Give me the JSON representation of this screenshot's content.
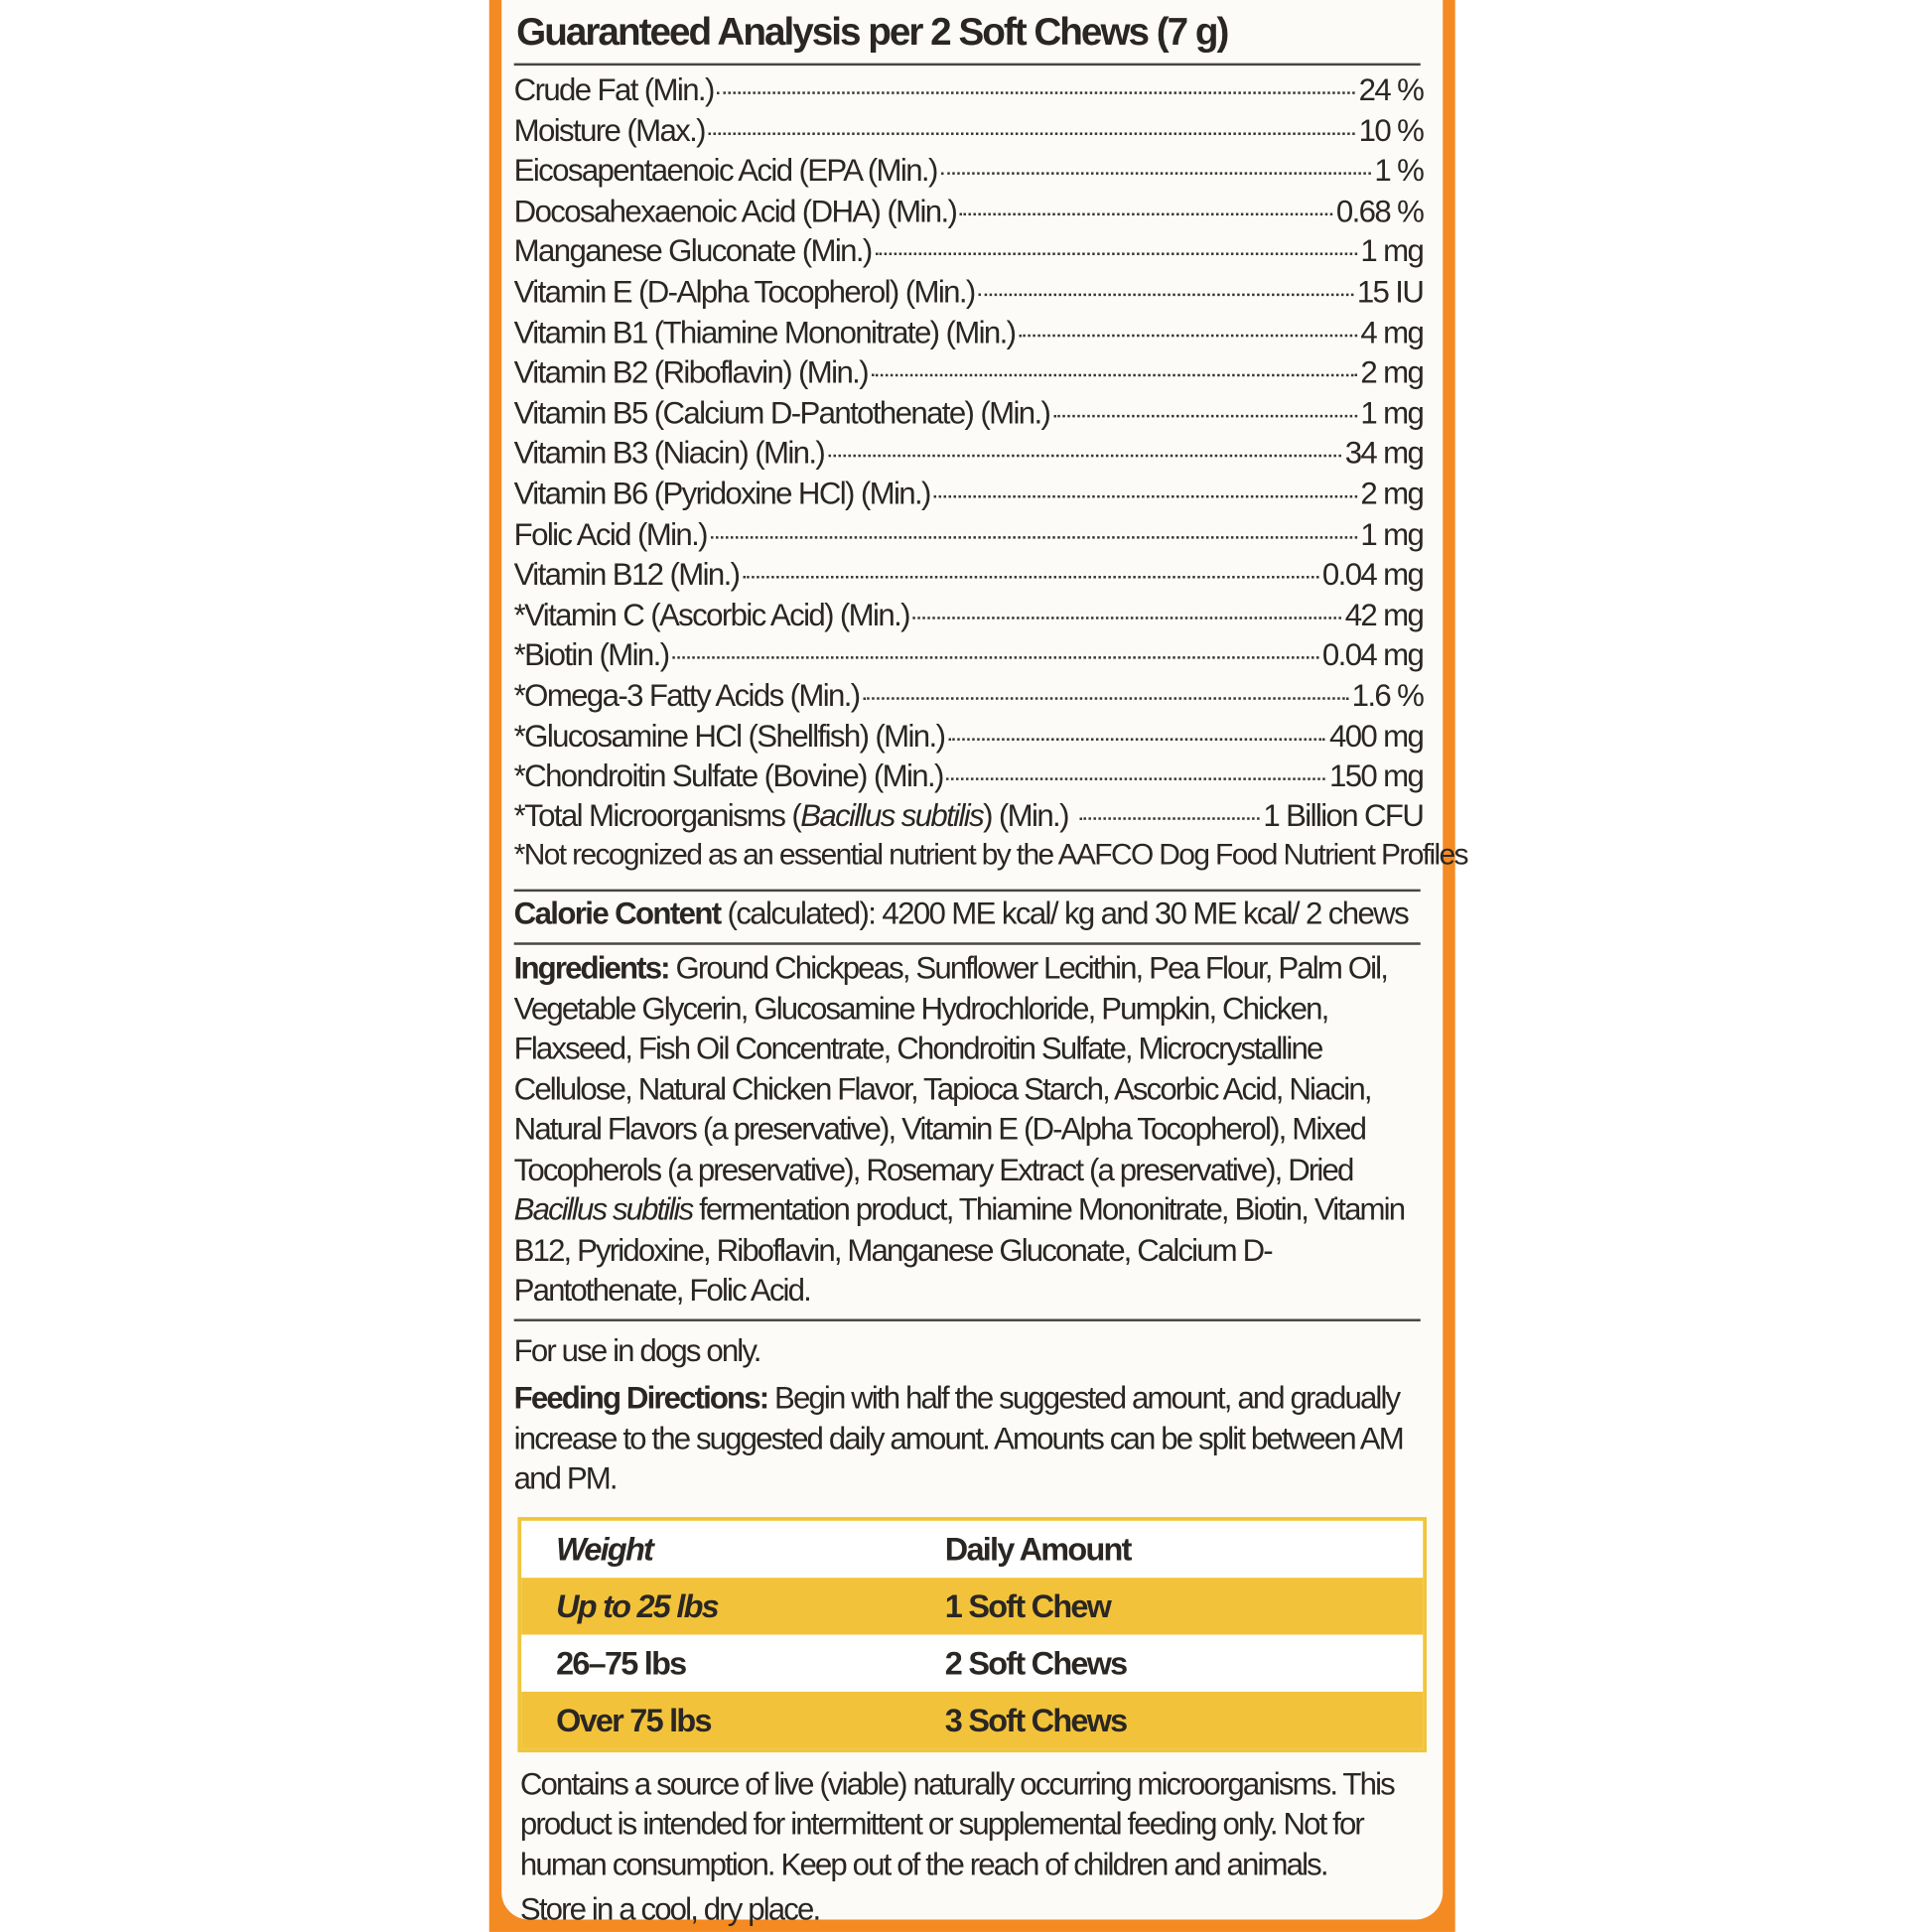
{
  "colors": {
    "border": "#f48a22",
    "table_highlight": "#f2c33a",
    "text": "#2a2623"
  },
  "analysis": {
    "title": "Guaranteed Analysis per 2 Soft Chews (7 g)",
    "rows": [
      {
        "name": "Crude Fat (Min.)",
        "value": "24 %"
      },
      {
        "name": "Moisture (Max.)",
        "value": "10 %"
      },
      {
        "name": "Eicosapentaenoic Acid (EPA (Min.)",
        "value": "1 %"
      },
      {
        "name": "Docosahexaenoic Acid (DHA) (Min.)",
        "value": "0.68 %"
      },
      {
        "name": "Manganese Gluconate (Min.)",
        "value": "1 mg"
      },
      {
        "name": "Vitamin E (D-Alpha Tocopherol) (Min.)",
        "value": "15 IU"
      },
      {
        "name": "Vitamin B1 (Thiamine Mononitrate) (Min.)",
        "value": "4 mg"
      },
      {
        "name": "Vitamin B2 (Riboflavin) (Min.)",
        "value": "2 mg"
      },
      {
        "name": "Vitamin B5 (Calcium D-Pantothenate) (Min.)",
        "value": "1 mg"
      },
      {
        "name": "Vitamin B3 (Niacin) (Min.)",
        "value": "34 mg"
      },
      {
        "name": "Vitamin B6 (Pyridoxine HCl) (Min.)",
        "value": "2 mg"
      },
      {
        "name": "Folic Acid (Min.)",
        "value": "1 mg"
      },
      {
        "name": "Vitamin B12 (Min.)",
        "value": "0.04 mg"
      },
      {
        "name": "*Vitamin C (Ascorbic Acid) (Min.)",
        "value": "42 mg"
      },
      {
        "name": "*Biotin (Min.)",
        "value": "0.04 mg"
      },
      {
        "name": "*Omega-3 Fatty Acids (Min.)",
        "value": "1.6 %"
      },
      {
        "name": "*Glucosamine HCl (Shellfish) (Min.)",
        "value": "400 mg"
      },
      {
        "name": "*Chondroitin Sulfate (Bovine) (Min.)",
        "value": "150 mg"
      }
    ],
    "micro": {
      "prefix": "*Total Microorganisms (",
      "italic": "Bacillus subtilis",
      "suffix": ") (Min.)",
      "value": "1 Billion CFU"
    },
    "note": "*Not recognized as an essential nutrient by the AAFCO Dog Food Nutrient Profiles"
  },
  "calorie": {
    "label": "Calorie Content",
    "text": " (calculated): 4200 ME kcal/ kg and 30 ME kcal/ 2 chews"
  },
  "ingredients": {
    "label": "Ingredients:",
    "part1": " Ground Chickpeas, Sunflower Lecithin, Pea Flour, Palm Oil, Vegetable Glycerin, Glucosamine Hydrochloride, Pumpkin, Chicken, Flaxseed, Fish Oil Concentrate, Chondroitin Sulfate, Microcrystalline Cellulose, Natural Chicken Flavor, Tapioca Starch, Ascorbic Acid, Niacin, Natural Flavors (a preservative), Vitamin E (D-Alpha Tocopherol), Mixed Tocopherols (a preservative), Rosemary Extract (a preservative), Dried ",
    "italic": "Bacillus subtilis",
    "part2": " fermentation product, Thiamine Mononitrate, Biotin, Vitamin B12, Pyridoxine, Riboflavin, Manganese Gluconate, Calcium D-Pantothenate, Folic Acid."
  },
  "use": "For use in dogs only.",
  "feeding": {
    "label": "Feeding Directions:",
    "text": " Begin with half the suggested amount, and gradually increase to the suggested daily amount. Amounts can be split between AM and PM."
  },
  "table": {
    "headers": [
      "Weight",
      "Daily Amount"
    ],
    "rows": [
      [
        "Up to 25 lbs",
        "1 Soft Chew"
      ],
      [
        "26–75 lbs",
        "2 Soft Chews"
      ],
      [
        "Over 75 lbs",
        "3 Soft Chews"
      ]
    ]
  },
  "footer": {
    "warning": "Contains a source of live (viable) naturally occurring microorganisms. This product is intended for intermittent or supplemental feeding only. Not for human consumption. Keep out of the reach of children and animals.",
    "storage": "Store in a cool, dry place."
  }
}
